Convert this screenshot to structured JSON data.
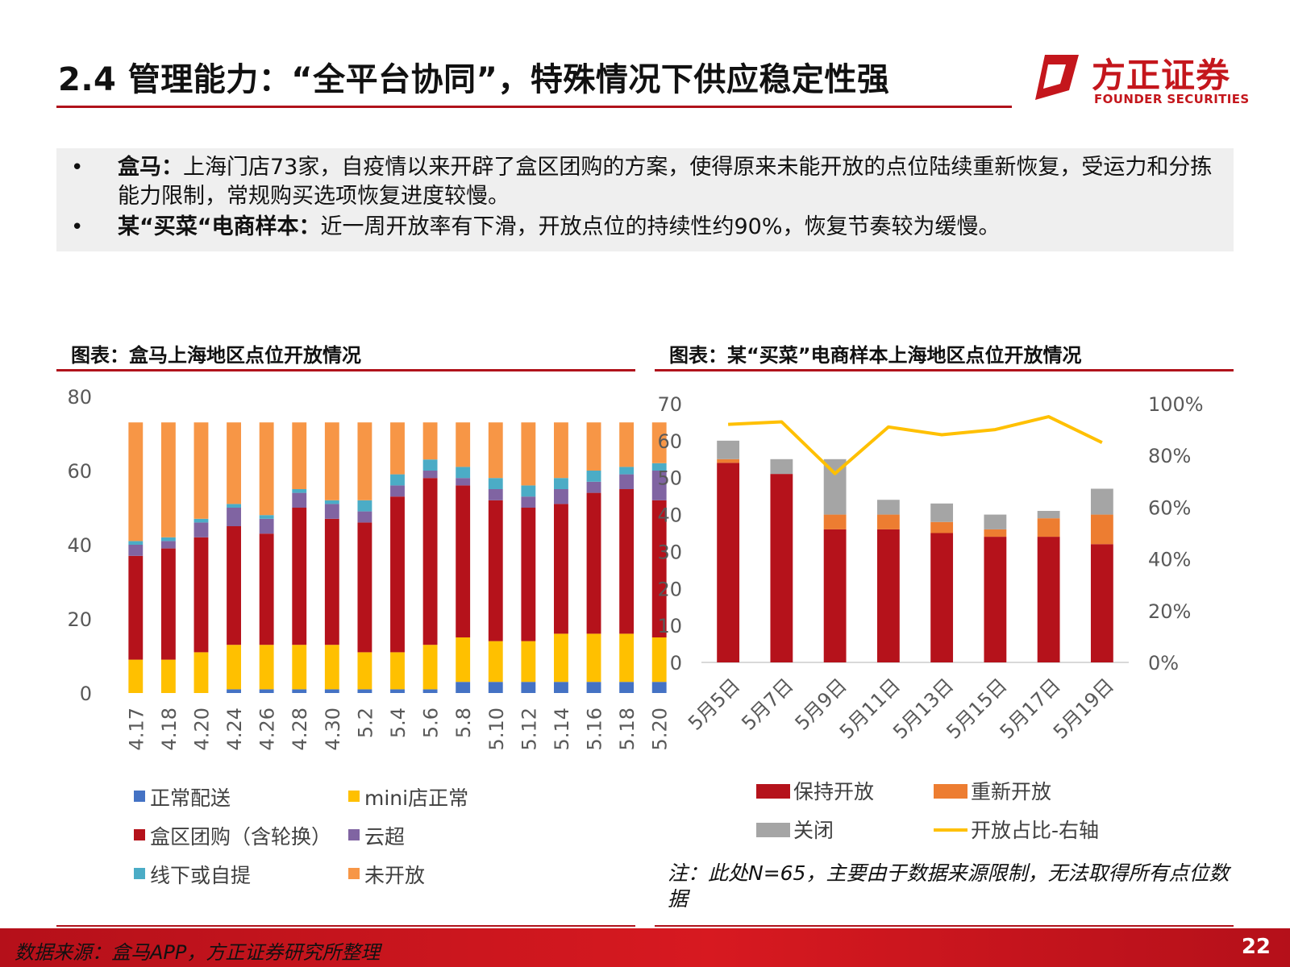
{
  "header": {
    "title": "2.4 管理能力：“全平台协同”，特殊情况下供应稳定性强",
    "logo_cn": "方正证券",
    "logo_en": "FOUNDER SECURITIES",
    "accent_color": "#b0121b"
  },
  "bullets": [
    {
      "bold": "盒马：",
      "text": "上海门店73家，自疫情以来开辟了盒区团购的方案，使得原来未能开放的点位陆续重新恢复，受运力和分拣能力限制，常规购买选项恢复进度较慢。"
    },
    {
      "bold": "某“买菜“电商样本：",
      "text": "近一周开放率有下滑，开放点位的持续性约90%，恢复节奏较为缓慢。"
    }
  ],
  "left_chart_heading": "图表：盒马上海地区点位开放情况",
  "right_chart_heading": "图表：某“买菜”电商样本上海地区点位开放情况",
  "note": "注：此处N=65，主要由于数据来源限制，无法取得所有点位数据",
  "footer": {
    "source": "数据来源：盒马APP，方正证券研究所整理",
    "page": "22"
  },
  "chart_data": [
    {
      "type": "bar",
      "stacked": true,
      "categories": [
        "4.17",
        "4.18",
        "4.20",
        "4.24",
        "4.26",
        "4.28",
        "4.30",
        "5.2",
        "5.4",
        "5.6",
        "5.8",
        "5.10",
        "5.12",
        "5.14",
        "5.16",
        "5.18",
        "5.20"
      ],
      "ylim": [
        0,
        80
      ],
      "yticks": [
        0,
        20,
        40,
        60,
        80
      ],
      "series": [
        {
          "name": "正常配送",
          "color": "#4472c4",
          "values": [
            0,
            0,
            0,
            1,
            1,
            1,
            1,
            1,
            1,
            1,
            3,
            3,
            3,
            3,
            3,
            3,
            3
          ]
        },
        {
          "name": "mini店正常",
          "color": "#ffc000",
          "values": [
            9,
            9,
            11,
            12,
            12,
            12,
            12,
            10,
            10,
            12,
            12,
            11,
            11,
            13,
            13,
            13,
            12
          ]
        },
        {
          "name": "盒区团购（含轮换）",
          "color": "#b5121b",
          "values": [
            28,
            30,
            31,
            32,
            30,
            37,
            34,
            35,
            42,
            45,
            41,
            38,
            36,
            35,
            38,
            39,
            37
          ]
        },
        {
          "name": "云超",
          "color": "#8064a2",
          "values": [
            3,
            2,
            4,
            5,
            4,
            4,
            4,
            3,
            3,
            2,
            2,
            3,
            3,
            4,
            3,
            4,
            8
          ]
        },
        {
          "name": "线下或自提",
          "color": "#4bacc6",
          "values": [
            1,
            1,
            1,
            1,
            1,
            1,
            1,
            3,
            3,
            3,
            3,
            3,
            3,
            3,
            3,
            2,
            2
          ]
        },
        {
          "name": "未开放",
          "color": "#f79646",
          "values": [
            32,
            31,
            26,
            22,
            25,
            18,
            21,
            21,
            14,
            10,
            12,
            15,
            17,
            15,
            13,
            12,
            11
          ]
        }
      ]
    },
    {
      "type": "bar",
      "stacked": true,
      "categories": [
        "5月5日",
        "5月7日",
        "5月9日",
        "5月11日",
        "5月13日",
        "5月15日",
        "5月17日",
        "5月19日"
      ],
      "ylim": [
        0,
        70
      ],
      "yticks": [
        0,
        10,
        20,
        30,
        40,
        50,
        60,
        70
      ],
      "y2lim": [
        0,
        1
      ],
      "y2ticks": [
        "0%",
        "20%",
        "40%",
        "60%",
        "80%",
        "100%"
      ],
      "series": [
        {
          "name": "保持开放",
          "color": "#b5121b",
          "values": [
            54,
            51,
            36,
            36,
            35,
            34,
            34,
            32
          ]
        },
        {
          "name": "重新开放",
          "color": "#ed7d31",
          "values": [
            1,
            0,
            4,
            4,
            3,
            2,
            5,
            8
          ]
        },
        {
          "name": "关闭",
          "color": "#a5a5a5",
          "values": [
            5,
            4,
            15,
            4,
            5,
            4,
            2,
            7
          ]
        },
        {
          "name": "开放占比-右轴",
          "color": "#ffc000",
          "type": "line",
          "axis": "right",
          "values": [
            0.92,
            0.93,
            0.73,
            0.91,
            0.88,
            0.9,
            0.95,
            0.85
          ]
        }
      ]
    }
  ]
}
